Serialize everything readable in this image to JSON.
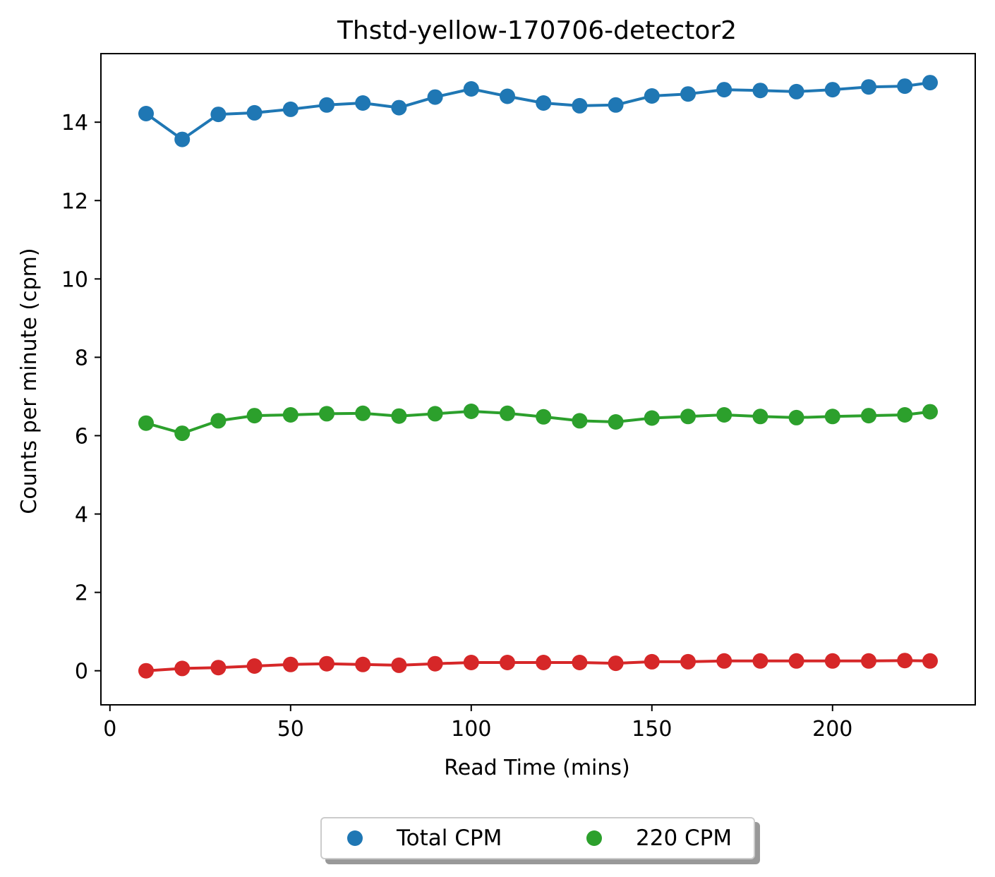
{
  "chart_data": {
    "type": "line",
    "title": "Thstd-yellow-170706-detector2",
    "xlabel": "Read Time (mins)",
    "ylabel": "Counts per minute (cpm)",
    "xlim": [
      -2.5,
      239.5
    ],
    "ylim": [
      -0.87,
      15.75
    ],
    "xticks": [
      0,
      50,
      100,
      150,
      200
    ],
    "yticks": [
      0,
      2,
      4,
      6,
      8,
      10,
      12,
      14
    ],
    "grid": false,
    "legend_position": "below-center",
    "x": [
      10,
      20,
      30,
      40,
      50,
      60,
      70,
      80,
      90,
      100,
      110,
      120,
      130,
      140,
      150,
      160,
      170,
      180,
      190,
      200,
      210,
      220,
      227
    ],
    "series": [
      {
        "name": "Total CPM",
        "color": "#1f77b4",
        "in_legend": true,
        "values": [
          14.22,
          13.56,
          14.2,
          14.24,
          14.33,
          14.44,
          14.49,
          14.37,
          14.64,
          14.85,
          14.66,
          14.49,
          14.42,
          14.44,
          14.67,
          14.72,
          14.83,
          14.81,
          14.78,
          14.83,
          14.9,
          14.92,
          15.01
        ]
      },
      {
        "name": "220 CPM",
        "color": "#2ca02c",
        "in_legend": true,
        "values": [
          6.32,
          6.06,
          6.38,
          6.51,
          6.53,
          6.56,
          6.57,
          6.5,
          6.56,
          6.62,
          6.57,
          6.48,
          6.38,
          6.35,
          6.45,
          6.49,
          6.53,
          6.49,
          6.46,
          6.49,
          6.51,
          6.53,
          6.61
        ]
      },
      {
        "name": "",
        "color": "#d62728",
        "in_legend": false,
        "values": [
          0.0,
          0.06,
          0.08,
          0.12,
          0.16,
          0.18,
          0.16,
          0.14,
          0.18,
          0.21,
          0.21,
          0.21,
          0.21,
          0.19,
          0.23,
          0.23,
          0.25,
          0.25,
          0.25,
          0.25,
          0.25,
          0.26,
          0.25
        ]
      }
    ]
  }
}
